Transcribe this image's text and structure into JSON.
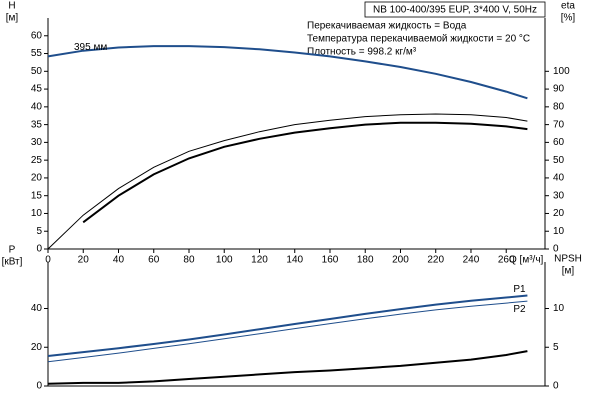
{
  "header": "NB 100-400/395 EUP, 3*400 V, 50Hz",
  "chart_data": [
    {
      "type": "line",
      "ylabel": "H",
      "yunit": "[м]",
      "y2label": "eta",
      "y2unit": "[%]",
      "xlabel": "Q [м³/ч]",
      "annotations": [
        "Перекачиваемая жидкость = Вода",
        "Температура перекачиваемой жидкости = 20 °C",
        "Плотность = 998.2 кг/м³"
      ],
      "x": [
        0,
        20,
        40,
        60,
        80,
        100,
        120,
        140,
        160,
        180,
        200,
        220,
        240,
        260,
        272
      ],
      "xlim": [
        0,
        282
      ],
      "xticks": [
        0,
        20,
        40,
        60,
        80,
        100,
        120,
        140,
        160,
        180,
        200,
        220,
        240,
        260
      ],
      "ylim": [
        0,
        65
      ],
      "yticks": [
        0,
        5,
        10,
        15,
        20,
        25,
        30,
        35,
        40,
        45,
        50,
        55,
        60
      ],
      "y2lim": [
        0,
        130
      ],
      "y2ticks": [
        0,
        10,
        20,
        30,
        40,
        50,
        60,
        70,
        80,
        90,
        100
      ],
      "series": [
        {
          "name": "395 мм",
          "color": "#1f4e8c",
          "values": [
            54.2,
            55.8,
            56.7,
            57.1,
            57.1,
            56.8,
            56.2,
            55.3,
            54.2,
            52.8,
            51.2,
            49.3,
            47.0,
            44.3,
            42.4
          ]
        },
        {
          "color": "#000000",
          "axis": "y2",
          "values": [
            0,
            19,
            34,
            46,
            55,
            61,
            66,
            70,
            72.5,
            74.5,
            75.5,
            76,
            75.5,
            74,
            72
          ]
        },
        {
          "color": "#000000",
          "axis": "y2",
          "values": [
            null,
            15,
            30,
            42,
            51,
            57.5,
            62,
            65.5,
            68,
            70,
            71,
            71,
            70.5,
            69,
            67.5
          ]
        }
      ]
    },
    {
      "type": "line",
      "ylabel": "P",
      "yunit": "[кВт]",
      "y2label": "NPSH",
      "y2unit": "[м]",
      "x": [
        0,
        20,
        40,
        60,
        80,
        100,
        120,
        140,
        160,
        180,
        200,
        220,
        240,
        260,
        272
      ],
      "xlim": [
        0,
        282
      ],
      "ylim": [
        0,
        64
      ],
      "yticks": [
        0,
        20,
        40
      ],
      "y2lim": [
        0,
        16
      ],
      "y2ticks": [
        0,
        5,
        10
      ],
      "series": [
        {
          "name": "P1",
          "color": "#1f4e8c",
          "values": [
            15.5,
            17.5,
            19.5,
            21.7,
            24,
            26.6,
            29.3,
            32,
            34.6,
            37.2,
            39.7,
            42,
            44,
            45.7,
            46.7
          ]
        },
        {
          "name": "P2",
          "color": "#1f4e8c",
          "values": [
            12.5,
            14.7,
            17,
            19.4,
            21.8,
            24.4,
            27,
            29.6,
            32.2,
            34.7,
            37.1,
            39.3,
            41.2,
            42.8,
            43.8
          ]
        },
        {
          "color": "#000000",
          "axis": "y2",
          "values": [
            0.3,
            0.4,
            0.4,
            0.6,
            0.9,
            1.2,
            1.5,
            1.8,
            2.0,
            2.3,
            2.6,
            3.0,
            3.4,
            4.0,
            4.5
          ]
        }
      ]
    }
  ]
}
